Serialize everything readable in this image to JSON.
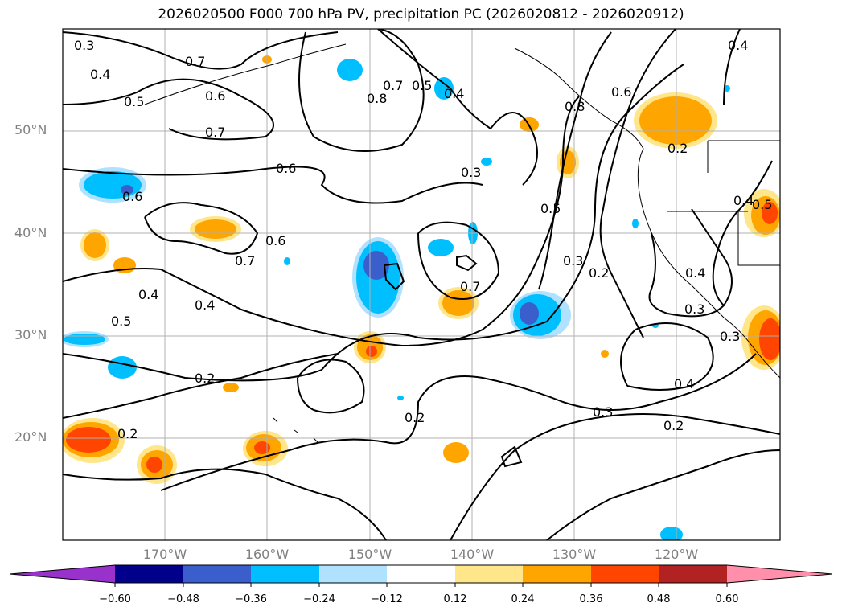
{
  "title": "2026020500 F000 700 hPa PV, precipitation PC (2026020812 - 2026020912)",
  "map": {
    "lat_labels": [
      "50°N",
      "40°N",
      "30°N",
      "20°N"
    ],
    "lon_labels": [
      "170°W",
      "160°W",
      "150°W",
      "140°W",
      "130°W",
      "120°W"
    ],
    "gridline_color": "#b0b0b0",
    "contour_labels": [
      "0.3",
      "0.4",
      "0.5",
      "0.6",
      "0.7",
      "0.8",
      "0.2"
    ]
  },
  "colorbar": {
    "ticks": [
      "−0.60",
      "−0.48",
      "−0.36",
      "−0.24",
      "−0.12",
      "0.12",
      "0.24",
      "0.36",
      "0.48",
      "0.60"
    ],
    "colors": [
      "#9932cc",
      "#00008b",
      "#3a5fcd",
      "#00bfff",
      "#b0e2ff",
      "#ffffff",
      "#ffe68a",
      "#ffa500",
      "#ff4500",
      "#b22222",
      "#ff8fab"
    ]
  }
}
